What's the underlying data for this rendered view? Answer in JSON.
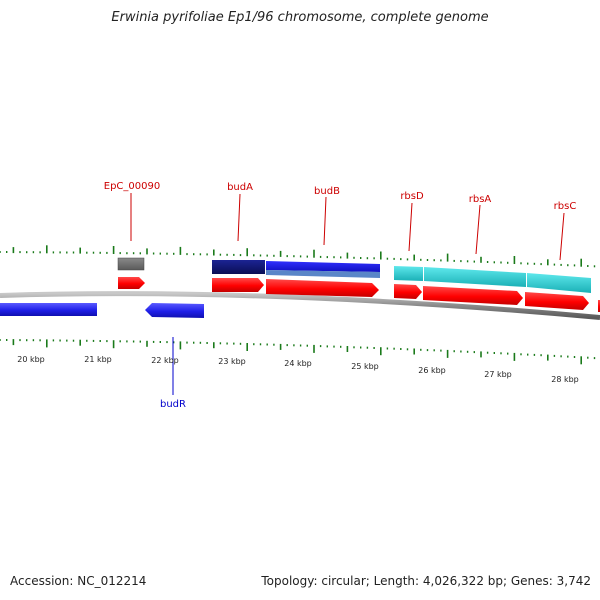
{
  "title": "Erwinia pyrifoliae Ep1/96 chromosome, complete genome",
  "footer": {
    "accession": "Accession: NC_012214",
    "summary": "Topology: circular; Length: 4,026,322 bp; Genes: 3,742"
  },
  "colors": {
    "label_forward": "#cc0000",
    "label_reverse": "#0000cc",
    "tick": "#1a7a1a",
    "backbone": "#888888",
    "cds_red": "#ff0000",
    "cds_blue": "#1f1fe8",
    "gene_gray": "#6e6e6e",
    "gene_navy": "#0f1473",
    "gene_blue": "#1a1aee",
    "gene_cyan": "#2ccfd4"
  },
  "scale": {
    "unit": "kbp",
    "labels": [
      "20 kbp",
      "21 kbp",
      "22 kbp",
      "23 kbp",
      "24 kbp",
      "25 kbp",
      "26 kbp",
      "27 kbp",
      "28 kbp"
    ]
  },
  "genes": [
    {
      "name": "EpC_00090",
      "strand": "forward",
      "kind": "gene",
      "start_kbp": 21.3,
      "end_kbp": 21.7
    },
    {
      "name": "budA",
      "strand": "forward",
      "kind": "gene",
      "start_kbp": 22.7,
      "end_kbp": 23.5
    },
    {
      "name": "budB",
      "strand": "forward",
      "kind": "gene",
      "start_kbp": 23.5,
      "end_kbp": 25.2
    },
    {
      "name": "rbsD",
      "strand": "forward",
      "kind": "gene",
      "start_kbp": 25.4,
      "end_kbp": 25.8
    },
    {
      "name": "rbsA",
      "strand": "forward",
      "kind": "gene",
      "start_kbp": 25.8,
      "end_kbp": 27.3
    },
    {
      "name": "rbsC",
      "strand": "forward",
      "kind": "gene",
      "start_kbp": 27.3,
      "end_kbp": 28.3
    },
    {
      "name": "budR",
      "strand": "reverse",
      "kind": "cds",
      "start_kbp": 21.8,
      "end_kbp": 22.7
    }
  ],
  "gene_labels": [
    "EpC_00090",
    "budA",
    "budB",
    "rbsD",
    "rbsA",
    "rbsC",
    "budR"
  ]
}
